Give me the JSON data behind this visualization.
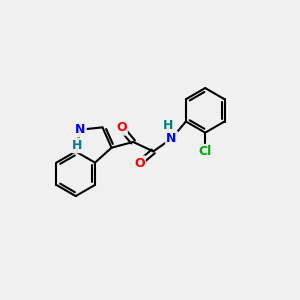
{
  "bg_color": "#f0f0f0",
  "bond_color": "#000000",
  "bond_width": 1.5,
  "atom_colors": {
    "O": "#ff0000",
    "N": "#0000ff",
    "Cl": "#00aa00",
    "H_label": "#008080",
    "C": "#000000"
  },
  "font_size_atom": 9
}
